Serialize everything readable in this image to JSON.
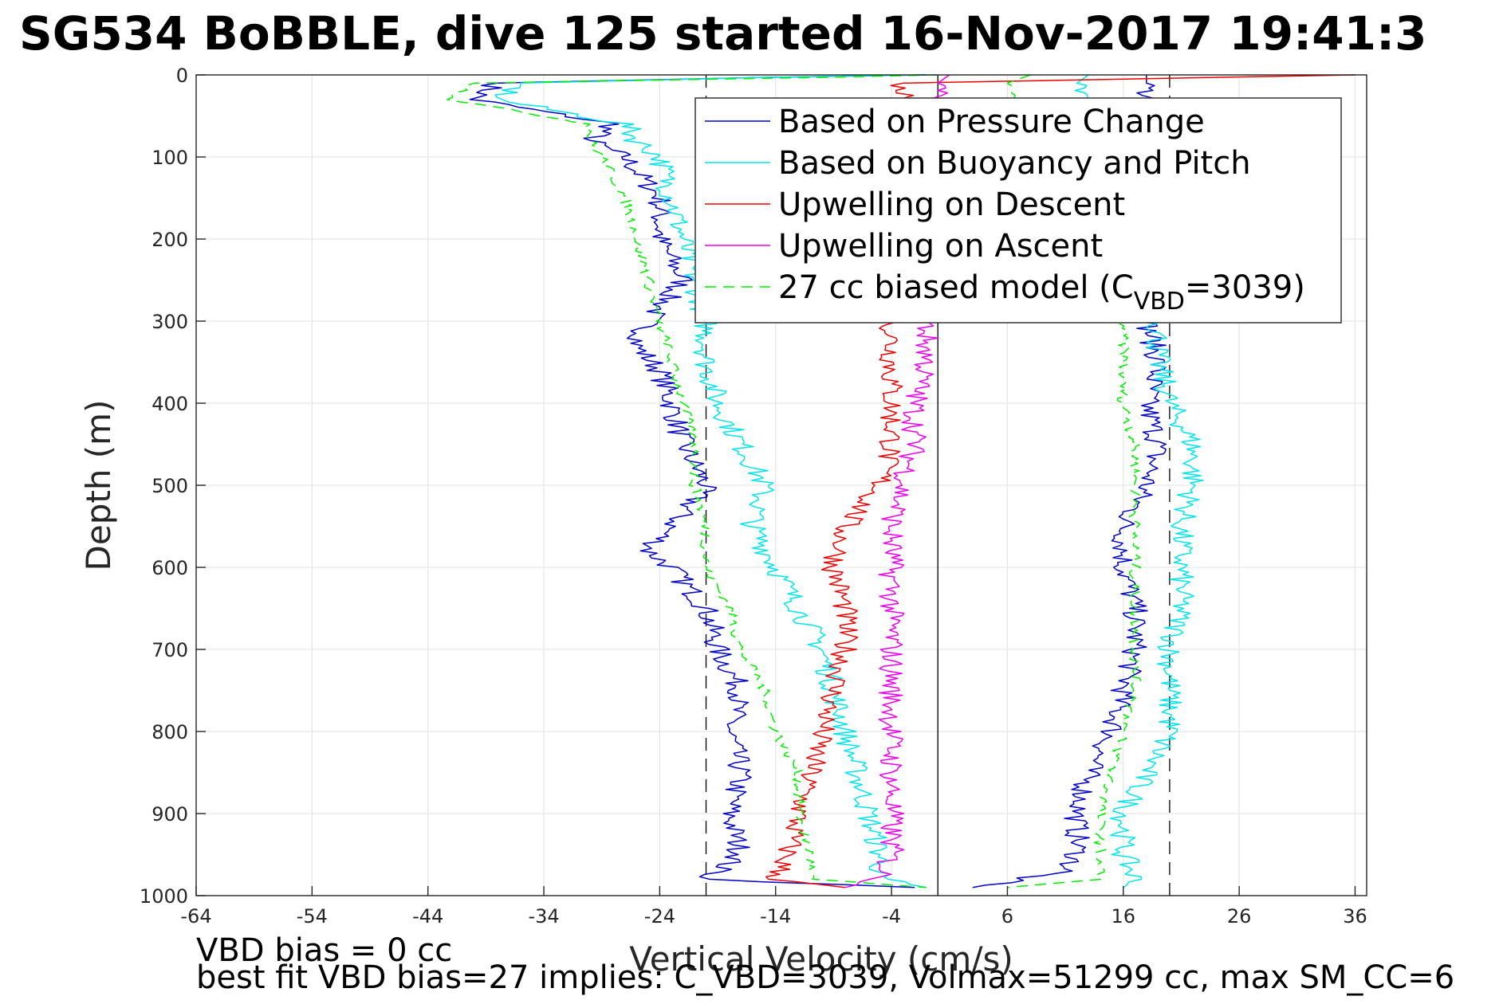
{
  "chart_data": {
    "type": "line",
    "title": "SG534 BoBBLE, dive 125 started 16-Nov-2017 19:41:3",
    "xlabel": "Vertical Velocity (cm/s)",
    "ylabel": "Depth (m)",
    "xlim": [
      -64,
      37
    ],
    "ylim": [
      0,
      1000
    ],
    "y_reversed": true,
    "grid": true,
    "legend_position": "top-right",
    "xticks": [
      -64,
      -54,
      -44,
      -34,
      -24,
      -14,
      -4,
      6,
      16,
      26,
      36
    ],
    "yticks": [
      0,
      100,
      200,
      300,
      400,
      500,
      600,
      700,
      800,
      900,
      1000
    ],
    "reference_lines": {
      "dashed_x": [
        -20,
        20
      ],
      "solid_x": [
        0
      ]
    },
    "series": [
      {
        "name": "Based on Pressure Change",
        "color": "#0000cc",
        "style": "solid",
        "descent": {
          "depth": [
            0,
            3,
            10,
            30,
            60,
            80,
            100,
            150,
            200,
            250,
            300,
            330,
            360,
            400,
            450,
            500,
            550,
            580,
            600,
            650,
            700,
            750,
            800,
            850,
            900,
            950,
            980,
            990
          ],
          "velocity": [
            -1,
            -15,
            -38,
            -40,
            -28,
            -30,
            -27,
            -24,
            -24,
            -22,
            -25,
            -26,
            -24,
            -23,
            -22,
            -20,
            -23,
            -25,
            -23,
            -20,
            -19,
            -17,
            -18,
            -17,
            -18,
            -17,
            -20,
            -2
          ]
        },
        "ascent": {
          "depth": [
            0,
            10,
            300,
            350,
            400,
            450,
            500,
            550,
            600,
            650,
            700,
            750,
            800,
            850,
            900,
            950,
            970,
            990
          ],
          "velocity": [
            18,
            18,
            18,
            19,
            18,
            19,
            18,
            16,
            16,
            17,
            17,
            16,
            15,
            13,
            12,
            12,
            11,
            3
          ]
        }
      },
      {
        "name": "Based on Buoyancy and Pitch",
        "color": "#00e5ee",
        "style": "solid",
        "descent": {
          "depth": [
            0,
            3,
            10,
            30,
            60,
            80,
            100,
            150,
            200,
            250,
            300,
            350,
            400,
            450,
            500,
            550,
            600,
            650,
            700,
            750,
            800,
            850,
            900,
            950,
            980,
            990
          ],
          "velocity": [
            -1,
            -15,
            -36,
            -38,
            -27,
            -26,
            -24,
            -23,
            -22,
            -21,
            -20,
            -20,
            -19,
            -17,
            -15,
            -16,
            -14,
            -12,
            -10,
            -9,
            -8,
            -7,
            -6,
            -5,
            -5,
            -1
          ]
        },
        "ascent": {
          "depth": [
            0,
            10,
            300,
            350,
            400,
            450,
            500,
            550,
            600,
            650,
            700,
            750,
            800,
            850,
            900,
            950,
            980,
            990
          ],
          "velocity": [
            13,
            12,
            19,
            19,
            20,
            22,
            22,
            21,
            21,
            21,
            20,
            20,
            20,
            18,
            16,
            16,
            17,
            16
          ]
        }
      },
      {
        "name": "Upwelling on Descent",
        "color": "#ee0000",
        "style": "solid",
        "descent": {
          "depth": [
            0,
            10,
            300,
            350,
            400,
            450,
            500,
            550,
            600,
            650,
            700,
            750,
            800,
            850,
            900,
            950,
            980,
            990
          ],
          "velocity": [
            36,
            -3,
            -4,
            -4,
            -4,
            -4,
            -5,
            -8,
            -9,
            -8,
            -8,
            -9,
            -10,
            -11,
            -12,
            -13,
            -14,
            -8
          ]
        }
      },
      {
        "name": "Upwelling on Ascent",
        "color": "#ee00ee",
        "style": "solid",
        "ascent": {
          "depth": [
            0,
            10,
            300,
            350,
            400,
            450,
            500,
            550,
            600,
            650,
            700,
            750,
            800,
            850,
            900,
            950,
            980,
            990
          ],
          "velocity": [
            1,
            0,
            -1,
            -1,
            -2,
            -2,
            -3,
            -4,
            -4,
            -4,
            -4,
            -4,
            -4,
            -4,
            -4,
            -4,
            -5,
            -8
          ]
        }
      },
      {
        "name": "27 cc biased model (C_VBD=3039)",
        "legend_main": "27 cc biased model (C",
        "legend_sub": "VBD",
        "legend_tail": "=3039)",
        "color": "#00ee00",
        "style": "dashed",
        "descent": {
          "depth": [
            0,
            3,
            10,
            30,
            60,
            80,
            100,
            150,
            200,
            250,
            300,
            350,
            400,
            450,
            500,
            550,
            600,
            650,
            700,
            750,
            800,
            850,
            900,
            950,
            980,
            990
          ],
          "velocity": [
            0,
            -10,
            -40,
            -42,
            -30,
            -30,
            -29,
            -27,
            -26,
            -25,
            -24,
            -23,
            -22,
            -21,
            -21,
            -20,
            -20,
            -18,
            -17,
            -15,
            -14,
            -12,
            -12,
            -11,
            -11,
            -1
          ]
        },
        "ascent": {
          "depth": [
            0,
            10,
            300,
            350,
            400,
            450,
            500,
            550,
            600,
            650,
            700,
            750,
            800,
            850,
            900,
            950,
            980,
            990
          ],
          "velocity": [
            8,
            6,
            16,
            16,
            16,
            17,
            17,
            17,
            17,
            17,
            17,
            17,
            16,
            15,
            14,
            14,
            14,
            6
          ]
        }
      }
    ],
    "annotations": [
      "VBD bias = 0 cc",
      "best fit VBD bias=27 implies: C_VBD=3039, Volmax=51299 cc, max SM_CC=6"
    ]
  }
}
